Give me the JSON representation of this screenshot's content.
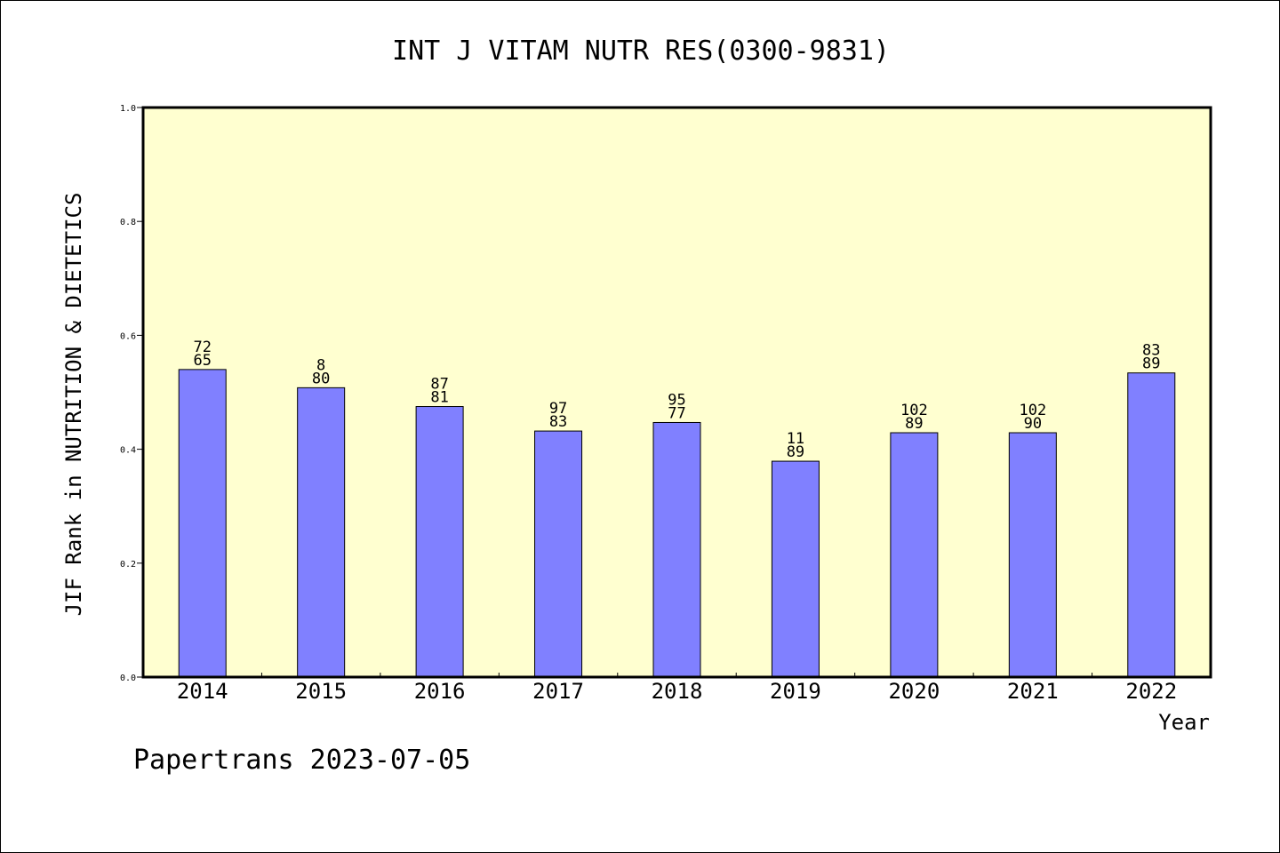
{
  "chart_data": {
    "type": "bar",
    "title": "INT J VITAM NUTR RES(0300-9831)",
    "xlabel": "Year",
    "ylabel": "JIF Rank in NUTRITION & DIETETICS",
    "footer": "Papertrans 2023-07-05",
    "ylim": [
      0,
      1.0
    ],
    "yticks": [
      "0.0",
      "0.2",
      "0.4",
      "0.6",
      "0.8",
      "1.0"
    ],
    "categories": [
      "2014",
      "2015",
      "2016",
      "2017",
      "2018",
      "2019",
      "2020",
      "2021",
      "2022"
    ],
    "values": [
      0.54,
      0.508,
      0.475,
      0.432,
      0.447,
      0.379,
      0.429,
      0.429,
      0.534
    ],
    "rank_labels": [
      [
        "72",
        "65"
      ],
      [
        "8",
        "80"
      ],
      [
        "87",
        "81"
      ],
      [
        "97",
        "83"
      ],
      [
        "95",
        "77"
      ],
      [
        "11",
        "89"
      ],
      [
        "102",
        "89"
      ],
      [
        "102",
        "90"
      ],
      [
        "83",
        "89"
      ]
    ],
    "grid": false,
    "colors": {
      "plot_background": "#ffffd0",
      "bar_fill": "#8080ff",
      "bar_stroke": "#000000"
    }
  }
}
